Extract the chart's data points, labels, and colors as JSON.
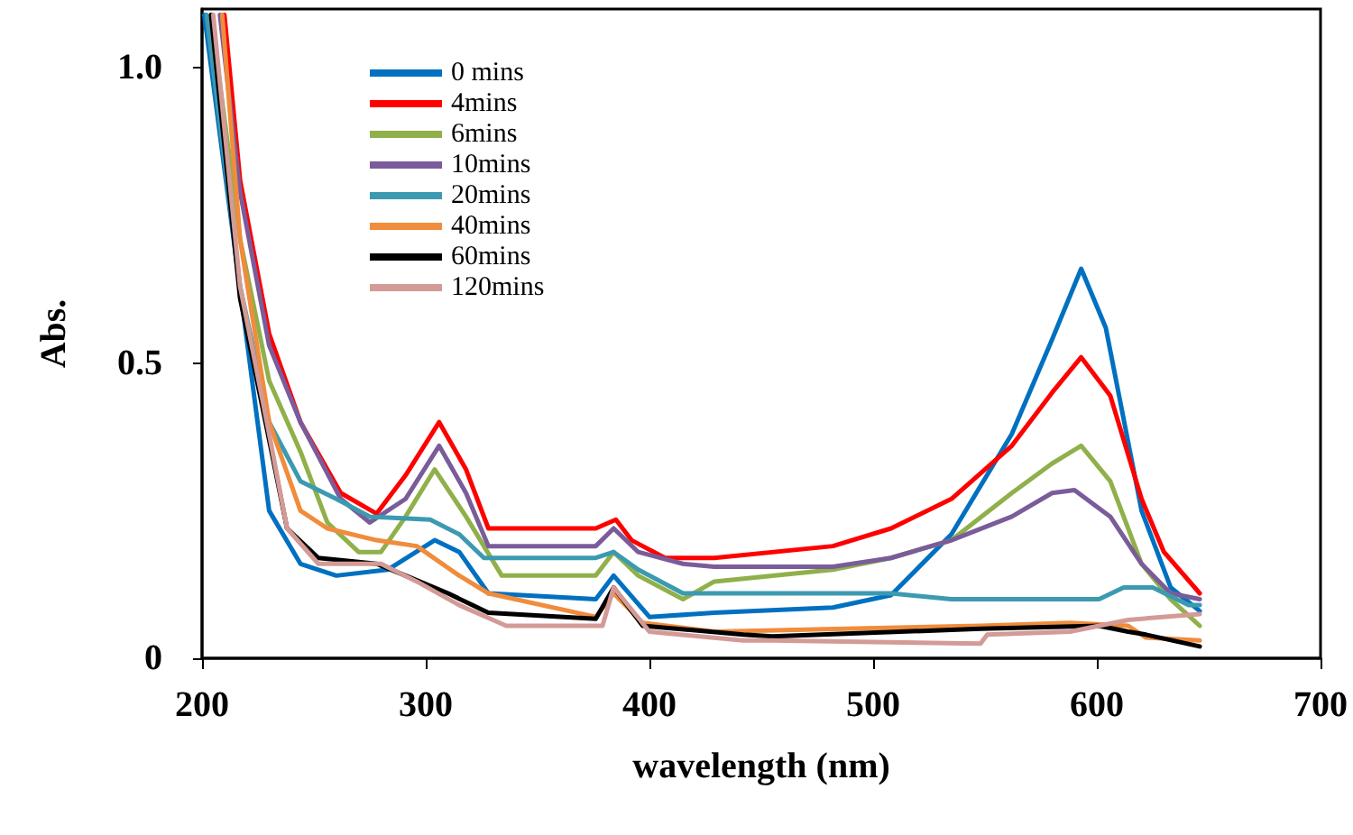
{
  "chart_data": {
    "type": "line",
    "xlabel": "wavelength (nm)",
    "ylabel": "Abs.",
    "xlim": [
      200,
      700
    ],
    "xticks": [
      200,
      300,
      400,
      500,
      600,
      700
    ],
    "ylim": [
      0,
      1.1
    ],
    "yticks": [
      0,
      0.5,
      {
        "value": 1,
        "label": "1.0"
      }
    ],
    "grid": false,
    "legend": "top left",
    "marker": "none",
    "line_style": "solid",
    "series": [
      {
        "name": "0 mins",
        "color": "#0070c0",
        "x": [
          201,
          230,
          244,
          260,
          283,
          304,
          315,
          328,
          376,
          384,
          400,
          429,
          482,
          508,
          535,
          562,
          580,
          593,
          604,
          620,
          633,
          646
        ],
        "values": [
          1.09,
          0.25,
          0.16,
          0.14,
          0.15,
          0.2,
          0.18,
          0.11,
          0.1,
          0.14,
          0.07,
          0.077,
          0.086,
          0.107,
          0.21,
          0.38,
          0.54,
          0.66,
          0.56,
          0.25,
          0.12,
          0.08
        ]
      },
      {
        "name": "4mins",
        "color": "#ff0000",
        "x": [
          210,
          217,
          230,
          244,
          262,
          278,
          291,
          306,
          318,
          328,
          376,
          385,
          392,
          407,
          429,
          482,
          508,
          535,
          562,
          580,
          593,
          606,
          620,
          630,
          646
        ],
        "values": [
          1.09,
          0.81,
          0.55,
          0.4,
          0.28,
          0.245,
          0.31,
          0.4,
          0.32,
          0.22,
          0.22,
          0.235,
          0.2,
          0.17,
          0.17,
          0.19,
          0.22,
          0.27,
          0.36,
          0.45,
          0.51,
          0.445,
          0.27,
          0.18,
          0.11
        ]
      },
      {
        "name": "6mins",
        "color": "#8fb04a",
        "x": [
          204,
          217,
          230,
          244,
          256,
          270,
          280,
          291,
          304,
          318,
          334,
          376,
          384,
          395,
          415,
          429,
          482,
          508,
          535,
          562,
          580,
          593,
          606,
          620,
          633,
          646
        ],
        "values": [
          1.09,
          0.71,
          0.47,
          0.35,
          0.23,
          0.18,
          0.18,
          0.24,
          0.32,
          0.24,
          0.14,
          0.14,
          0.18,
          0.14,
          0.1,
          0.13,
          0.15,
          0.17,
          0.2,
          0.28,
          0.33,
          0.36,
          0.3,
          0.16,
          0.1,
          0.055
        ]
      },
      {
        "name": "10mins",
        "color": "#7a5c9a",
        "x": [
          208,
          217,
          230,
          244,
          262,
          275,
          291,
          306,
          318,
          328,
          376,
          384,
          395,
          415,
          429,
          482,
          508,
          535,
          562,
          580,
          590,
          606,
          620,
          633,
          646
        ],
        "values": [
          1.09,
          0.79,
          0.53,
          0.4,
          0.27,
          0.23,
          0.27,
          0.36,
          0.28,
          0.19,
          0.19,
          0.22,
          0.18,
          0.16,
          0.155,
          0.155,
          0.17,
          0.2,
          0.24,
          0.28,
          0.285,
          0.24,
          0.16,
          0.11,
          0.1
        ]
      },
      {
        "name": "20mins",
        "color": "#3c9ab0",
        "x": [
          202,
          217,
          230,
          244,
          260,
          275,
          302,
          315,
          326,
          376,
          384,
          395,
          415,
          429,
          508,
          535,
          601,
          612,
          625,
          641,
          646
        ],
        "values": [
          1.09,
          0.63,
          0.4,
          0.3,
          0.27,
          0.24,
          0.235,
          0.21,
          0.17,
          0.17,
          0.18,
          0.15,
          0.11,
          0.11,
          0.11,
          0.1,
          0.1,
          0.12,
          0.12,
          0.09,
          0.09
        ]
      },
      {
        "name": "40mins",
        "color": "#f08c3c",
        "x": [
          209,
          217,
          230,
          244,
          256,
          278,
          296,
          315,
          328,
          376,
          384,
          397,
          429,
          548,
          588,
          614,
          622,
          646
        ],
        "values": [
          1.09,
          0.71,
          0.4,
          0.25,
          0.22,
          0.2,
          0.19,
          0.14,
          0.11,
          0.07,
          0.11,
          0.06,
          0.045,
          0.055,
          0.06,
          0.055,
          0.035,
          0.03
        ]
      },
      {
        "name": "60mins",
        "color": "#000000",
        "x": [
          204,
          217,
          230,
          238,
          252,
          278,
          291,
          310,
          328,
          376,
          384,
          397,
          442,
          455,
          548,
          601,
          614,
          622,
          646
        ],
        "values": [
          1.09,
          0.61,
          0.37,
          0.22,
          0.17,
          0.16,
          0.14,
          0.11,
          0.077,
          0.067,
          0.12,
          0.055,
          0.04,
          0.037,
          0.05,
          0.055,
          0.045,
          0.04,
          0.02
        ]
      },
      {
        "name": "120mins",
        "color": "#d39a96",
        "x": [
          205,
          217,
          230,
          238,
          252,
          280,
          296,
          315,
          336,
          379,
          384,
          400,
          442,
          455,
          548,
          551,
          588,
          614,
          646
        ],
        "values": [
          1.09,
          0.63,
          0.38,
          0.22,
          0.16,
          0.16,
          0.13,
          0.09,
          0.055,
          0.055,
          0.12,
          0.045,
          0.03,
          0.03,
          0.025,
          0.04,
          0.045,
          0.065,
          0.075
        ]
      }
    ]
  }
}
